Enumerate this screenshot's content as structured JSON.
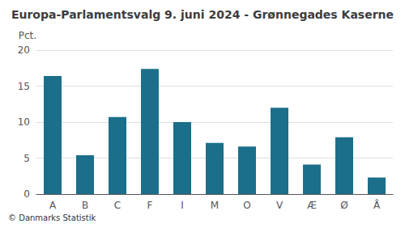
{
  "chart_data": {
    "type": "bar",
    "title": "Europa-Parlamentsvalg 9. juni 2024 - Grønnegades Kaserne",
    "categories": [
      "A",
      "B",
      "C",
      "F",
      "I",
      "M",
      "O",
      "V",
      "Æ",
      "Ø",
      "Å"
    ],
    "values": [
      16.4,
      5.4,
      10.7,
      17.4,
      10.0,
      7.1,
      6.6,
      12.0,
      4.1,
      7.9,
      2.3
    ],
    "color": "#1b6f8a",
    "ylabel": "Pct.",
    "footer": "© Danmarks Statistik",
    "ylim": [
      0,
      20
    ],
    "yticks": [
      0,
      5,
      10,
      15,
      20
    ],
    "grid": true
  }
}
